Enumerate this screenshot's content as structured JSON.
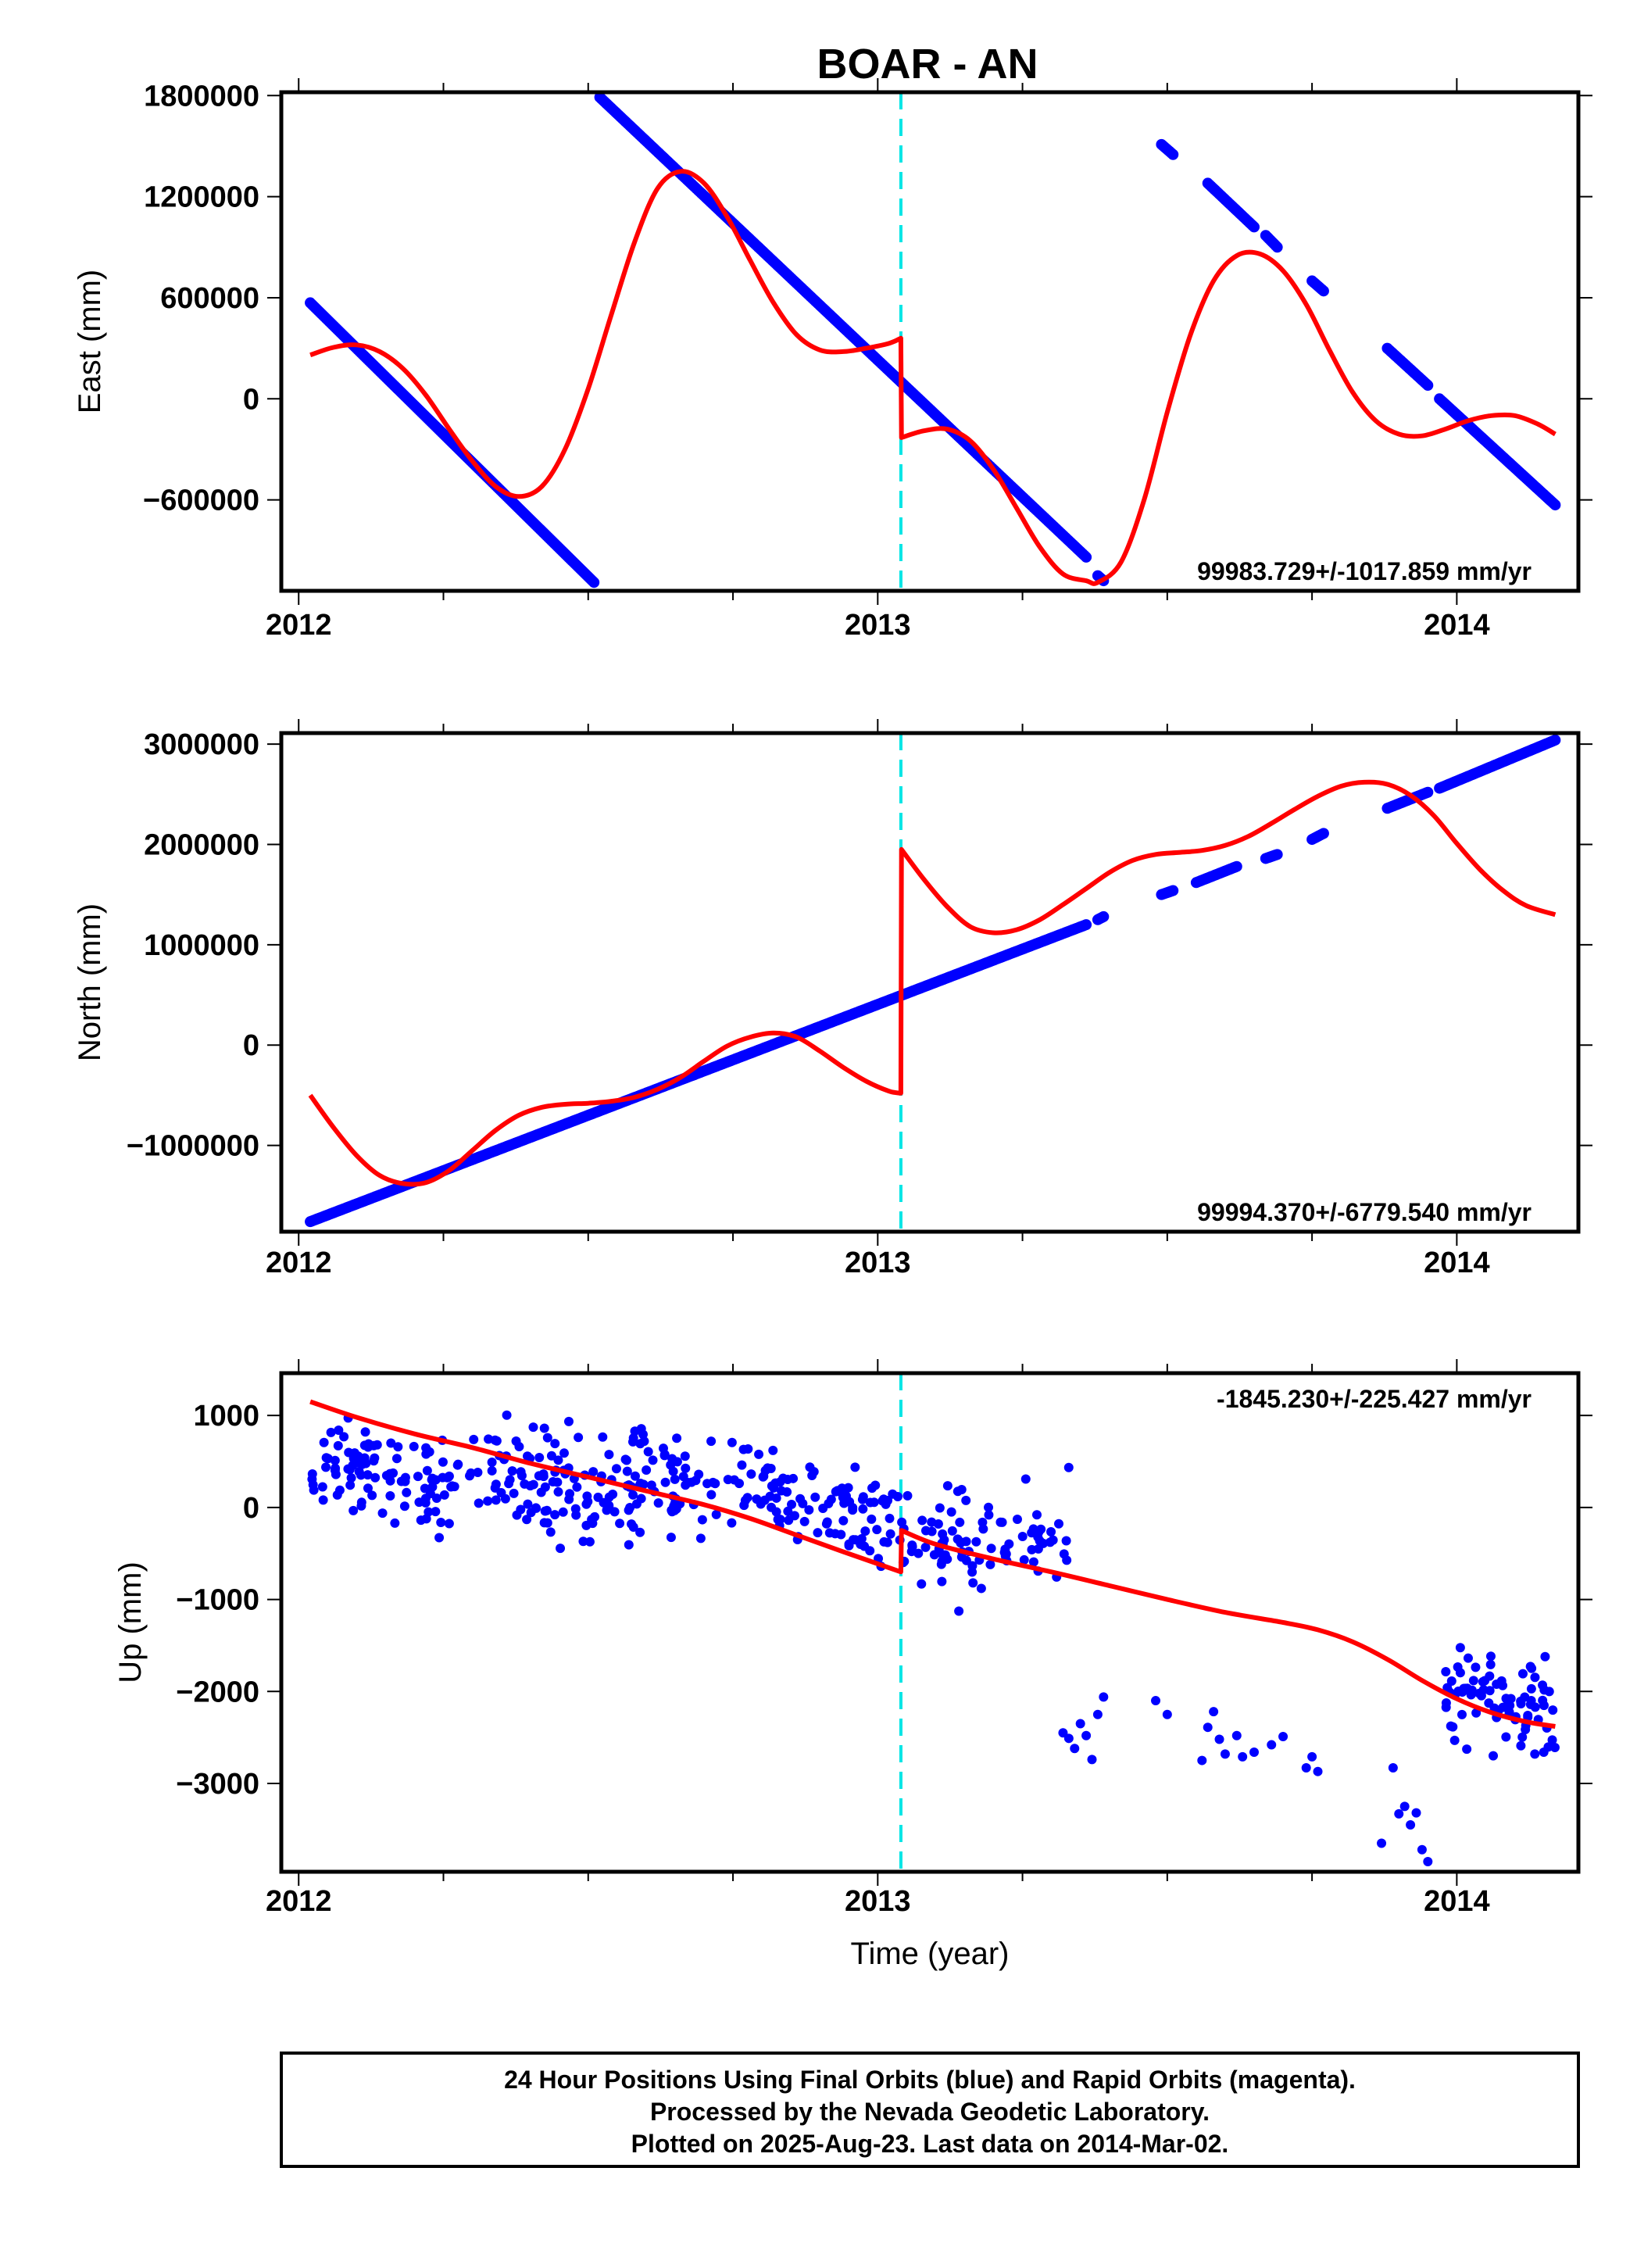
{
  "title": "BOAR - AN",
  "footer": {
    "line1": "24 Hour Positions Using Final Orbits (blue) and Rapid Orbits (magenta).",
    "line2": "Processed by the Nevada Geodetic Laboratory.",
    "line3": "Plotted on 2025-Aug-23. Last data on 2014-Mar-02."
  },
  "colors": {
    "data": "#0000ff",
    "model": "#ff0000",
    "event": "#00e5e5",
    "frame": "#000000"
  },
  "chart_data": [
    {
      "type": "scatter",
      "title": "BOAR - AN",
      "xlabel": "",
      "ylabel": "East (mm)",
      "xlim": [
        2011.97,
        2014.21
      ],
      "ylim": [
        -1140000,
        1820000
      ],
      "xticks": [
        2012,
        2013,
        2014
      ],
      "yticks": [
        -600000,
        0,
        600000,
        1200000,
        1800000
      ],
      "ytick_labels": [
        "−600000",
        "0",
        "600000",
        "1200000",
        "1800000"
      ],
      "rate_text": "99983.729+/-1017.859 mm/yr",
      "event_x": 2013.04,
      "series": [
        {
          "kind": "points",
          "segments": [
            {
              "x0": 2012.02,
              "x1": 2012.51,
              "y0": 570000,
              "y1": -1090000
            },
            {
              "x0": 2012.52,
              "x1": 2013.36,
              "y0": 1790000,
              "y1": -940000
            },
            {
              "x0": 2013.38,
              "x1": 2013.39,
              "y0": -1050000,
              "y1": -1080000
            },
            {
              "x0": 2013.49,
              "x1": 2013.51,
              "y0": 1510000,
              "y1": 1450000
            },
            {
              "x0": 2013.57,
              "x1": 2013.65,
              "y0": 1280000,
              "y1": 1020000
            },
            {
              "x0": 2013.67,
              "x1": 2013.69,
              "y0": 970000,
              "y1": 900000
            },
            {
              "x0": 2013.75,
              "x1": 2013.77,
              "y0": 700000,
              "y1": 640000
            },
            {
              "x0": 2013.88,
              "x1": 2013.95,
              "y0": 300000,
              "y1": 80000
            },
            {
              "x0": 2013.97,
              "x1": 2014.17,
              "y0": 0,
              "y1": -630000
            }
          ]
        },
        {
          "kind": "model",
          "x": [
            2012.02,
            2012.06,
            2012.1,
            2012.14,
            2012.18,
            2012.22,
            2012.26,
            2012.3,
            2012.34,
            2012.38,
            2012.42,
            2012.46,
            2012.5,
            2012.54,
            2012.58,
            2012.62,
            2012.66,
            2012.7,
            2012.74,
            2012.78,
            2012.82,
            2012.86,
            2012.9,
            2012.94,
            2012.98,
            2013.02,
            2013.04,
            2013.041,
            2013.08,
            2013.12,
            2013.16,
            2013.2,
            2013.24,
            2013.28,
            2013.32,
            2013.36,
            2013.38,
            2013.42,
            2013.46,
            2013.5,
            2013.54,
            2013.58,
            2013.62,
            2013.66,
            2013.7,
            2013.74,
            2013.78,
            2013.82,
            2013.86,
            2013.9,
            2013.94,
            2013.98,
            2014.02,
            2014.06,
            2014.1,
            2014.14,
            2014.17
          ],
          "y": [
            260000,
            305000,
            320000,
            280000,
            180000,
            20000,
            -180000,
            -370000,
            -520000,
            -580000,
            -520000,
            -300000,
            60000,
            500000,
            930000,
            1250000,
            1350000,
            1280000,
            1080000,
            820000,
            570000,
            380000,
            290000,
            280000,
            300000,
            330000,
            360000,
            -230000,
            -190000,
            -180000,
            -250000,
            -420000,
            -650000,
            -880000,
            -1040000,
            -1080000,
            -1090000,
            -970000,
            -600000,
            -80000,
            380000,
            700000,
            850000,
            860000,
            760000,
            560000,
            290000,
            40000,
            -130000,
            -210000,
            -220000,
            -180000,
            -130000,
            -100000,
            -100000,
            -150000,
            -210000
          ]
        }
      ]
    },
    {
      "type": "scatter",
      "xlabel": "",
      "ylabel": "North (mm)",
      "xlim": [
        2011.97,
        2014.21
      ],
      "ylim": [
        -1860000,
        3110000
      ],
      "xticks": [
        2012,
        2013,
        2014
      ],
      "yticks": [
        -1000000,
        0,
        1000000,
        2000000,
        3000000
      ],
      "ytick_labels": [
        "−1000000",
        "0",
        "1000000",
        "2000000",
        "3000000"
      ],
      "rate_text": "99994.370+/-6779.540 mm/yr",
      "event_x": 2013.04,
      "series": [
        {
          "kind": "points",
          "segments": [
            {
              "x0": 2012.02,
              "x1": 2013.36,
              "y0": -1760000,
              "y1": 1200000
            },
            {
              "x0": 2013.38,
              "x1": 2013.39,
              "y0": 1250000,
              "y1": 1280000
            },
            {
              "x0": 2013.49,
              "x1": 2013.51,
              "y0": 1500000,
              "y1": 1540000
            },
            {
              "x0": 2013.55,
              "x1": 2013.62,
              "y0": 1620000,
              "y1": 1780000
            },
            {
              "x0": 2013.67,
              "x1": 2013.69,
              "y0": 1860000,
              "y1": 1900000
            },
            {
              "x0": 2013.75,
              "x1": 2013.77,
              "y0": 2050000,
              "y1": 2110000
            },
            {
              "x0": 2013.88,
              "x1": 2013.95,
              "y0": 2360000,
              "y1": 2520000
            },
            {
              "x0": 2013.97,
              "x1": 2014.17,
              "y0": 2560000,
              "y1": 3040000
            }
          ]
        },
        {
          "kind": "model",
          "x": [
            2012.02,
            2012.06,
            2012.1,
            2012.14,
            2012.18,
            2012.22,
            2012.26,
            2012.3,
            2012.34,
            2012.38,
            2012.42,
            2012.46,
            2012.5,
            2012.54,
            2012.58,
            2012.62,
            2012.66,
            2012.7,
            2012.74,
            2012.78,
            2012.82,
            2012.86,
            2012.9,
            2012.94,
            2012.98,
            2013.02,
            2013.04,
            2013.041,
            2013.08,
            2013.12,
            2013.16,
            2013.2,
            2013.24,
            2013.28,
            2013.32,
            2013.36,
            2013.4,
            2013.44,
            2013.48,
            2013.52,
            2013.56,
            2013.6,
            2013.64,
            2013.68,
            2013.72,
            2013.76,
            2013.8,
            2013.84,
            2013.88,
            2013.92,
            2013.96,
            2014.0,
            2014.04,
            2014.08,
            2014.12,
            2014.17
          ],
          "y": [
            -500000,
            -820000,
            -1100000,
            -1300000,
            -1380000,
            -1370000,
            -1250000,
            -1050000,
            -850000,
            -700000,
            -620000,
            -590000,
            -580000,
            -560000,
            -520000,
            -440000,
            -320000,
            -160000,
            -10000,
            80000,
            120000,
            80000,
            -60000,
            -220000,
            -360000,
            -460000,
            -480000,
            1950000,
            1650000,
            1380000,
            1180000,
            1120000,
            1150000,
            1250000,
            1400000,
            1560000,
            1720000,
            1840000,
            1900000,
            1920000,
            1940000,
            1990000,
            2080000,
            2210000,
            2350000,
            2480000,
            2580000,
            2620000,
            2600000,
            2490000,
            2290000,
            2010000,
            1750000,
            1540000,
            1390000,
            1300000
          ]
        }
      ]
    },
    {
      "type": "scatter",
      "xlabel": "Time (year)",
      "ylabel": "Up (mm)",
      "xlim": [
        2011.97,
        2014.21
      ],
      "ylim": [
        -3960,
        1460
      ],
      "xticks": [
        2012,
        2013,
        2014
      ],
      "yticks": [
        -3000,
        -2000,
        -1000,
        0,
        1000
      ],
      "ytick_labels": [
        "−3000",
        "−2000",
        "−1000",
        "0",
        "1000"
      ],
      "rate_text": "-1845.230+/-225.427 mm/yr",
      "event_x": 2013.04,
      "series": [
        {
          "kind": "points",
          "clusters": [
            {
              "x0": 2012.02,
              "x1": 2012.26,
              "y_start": 420,
              "y_end": 280,
              "spread": 620,
              "count": 95
            },
            {
              "x0": 2012.26,
              "x1": 2012.52,
              "y_start": 420,
              "y_end": 120,
              "spread": 650,
              "count": 95
            },
            {
              "x0": 2012.52,
              "x1": 2012.78,
              "y_start": 250,
              "y_end": 320,
              "spread": 620,
              "count": 95
            },
            {
              "x0": 2012.78,
              "x1": 2013.04,
              "y_start": 200,
              "y_end": -200,
              "spread": 560,
              "count": 95
            },
            {
              "x0": 2013.04,
              "x1": 2013.33,
              "y_start": -320,
              "y_end": -320,
              "spread": 650,
              "count": 90
            },
            {
              "x0": 2013.98,
              "x1": 2014.17,
              "y_start": -2050,
              "y_end": -2250,
              "spread": 580,
              "count": 85
            }
          ],
          "x": [
            2013.32,
            2013.33,
            2013.34,
            2013.35,
            2013.36,
            2013.37,
            2013.38,
            2013.39,
            2013.48,
            2013.5,
            2013.56,
            2013.57,
            2013.58,
            2013.59,
            2013.6,
            2013.62,
            2013.63,
            2013.65,
            2013.68,
            2013.7,
            2013.74,
            2013.75,
            2013.76,
            2013.87,
            2013.89,
            2013.9,
            2013.91,
            2013.92,
            2013.93,
            2013.94,
            2013.95
          ],
          "y": [
            -2450,
            -2510,
            -2620,
            -2350,
            -2480,
            -2740,
            -2250,
            -2060,
            -2100,
            -2250,
            -2750,
            -2390,
            -2220,
            -2520,
            -2680,
            -2480,
            -2710,
            -2660,
            -2580,
            -2490,
            -2830,
            -2710,
            -2870,
            -3650,
            -2830,
            -3330,
            -3250,
            -3450,
            -3320,
            -3720,
            -3850
          ]
        },
        {
          "kind": "model",
          "x": [
            2012.02,
            2012.1,
            2012.2,
            2012.3,
            2012.4,
            2012.5,
            2012.6,
            2012.7,
            2012.78,
            2012.86,
            2012.94,
            2013.04,
            2013.041,
            2013.1,
            2013.2,
            2013.3,
            2013.4,
            2013.5,
            2013.6,
            2013.7,
            2013.76,
            2013.82,
            2013.88,
            2013.94,
            2014.0,
            2014.06,
            2014.12,
            2014.17
          ],
          "y": [
            1150,
            980,
            800,
            650,
            480,
            330,
            180,
            30,
            -120,
            -300,
            -480,
            -700,
            -250,
            -400,
            -560,
            -700,
            -850,
            -1000,
            -1140,
            -1250,
            -1330,
            -1460,
            -1650,
            -1880,
            -2080,
            -2230,
            -2330,
            -2380
          ]
        }
      ]
    }
  ]
}
